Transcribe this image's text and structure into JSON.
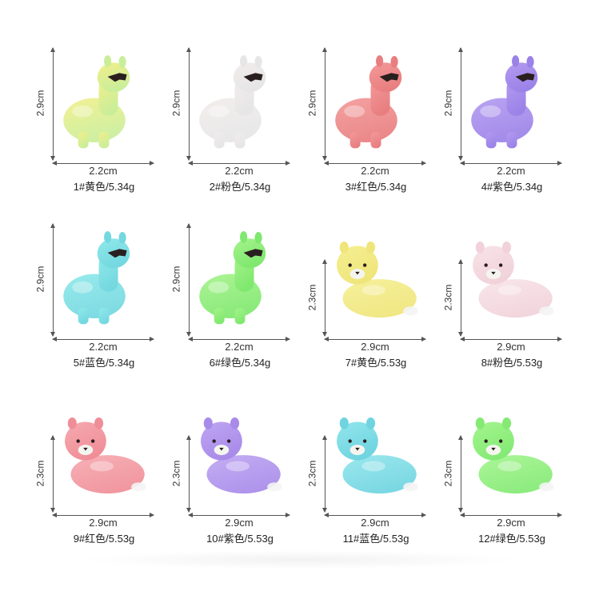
{
  "products": [
    {
      "caption": "1#黄色/5.34g",
      "width": "2.2cm",
      "height": "2.9cm",
      "pose": "standing",
      "color": "#f3ef8a",
      "accent": "#c9ee9a"
    },
    {
      "caption": "2#粉色/5.34g",
      "width": "2.2cm",
      "height": "2.9cm",
      "pose": "standing",
      "color": "#f2ecec",
      "accent": "#e6e6e6"
    },
    {
      "caption": "3#红色/5.34g",
      "width": "2.2cm",
      "height": "2.9cm",
      "pose": "standing",
      "color": "#f39a9a",
      "accent": "#e97e80"
    },
    {
      "caption": "4#紫色/5.34g",
      "width": "2.2cm",
      "height": "2.9cm",
      "pose": "standing",
      "color": "#b49cf0",
      "accent": "#9b82e8"
    },
    {
      "caption": "5#蓝色/5.34g",
      "width": "2.2cm",
      "height": "2.9cm",
      "pose": "standing",
      "color": "#8fe9ea",
      "accent": "#74d8e0"
    },
    {
      "caption": "6#绿色/5.34g",
      "width": "2.2cm",
      "height": "2.9cm",
      "pose": "standing",
      "color": "#a6f38c",
      "accent": "#7fe86e"
    },
    {
      "caption": "7#黄色/5.53g",
      "width": "2.9cm",
      "height": "2.3cm",
      "pose": "lying",
      "color": "#f5ef92",
      "accent": "#efe57a"
    },
    {
      "caption": "8#粉色/5.53g",
      "width": "2.9cm",
      "height": "2.3cm",
      "pose": "lying",
      "color": "#f8e4e8",
      "accent": "#f1d2da"
    },
    {
      "caption": "9#红色/5.53g",
      "width": "2.9cm",
      "height": "2.3cm",
      "pose": "lying",
      "color": "#f6aab0",
      "accent": "#f08e98"
    },
    {
      "caption": "10#紫色/5.53g",
      "width": "2.9cm",
      "height": "2.3cm",
      "pose": "lying",
      "color": "#bfa6f3",
      "accent": "#a88be9"
    },
    {
      "caption": "11#蓝色/5.53g",
      "width": "2.9cm",
      "height": "2.3cm",
      "pose": "lying",
      "color": "#93e6ec",
      "accent": "#6fd4e0"
    },
    {
      "caption": "12#绿色/5.53g",
      "width": "2.9cm",
      "height": "2.3cm",
      "pose": "lying",
      "color": "#a5f590",
      "accent": "#84ea74"
    }
  ]
}
